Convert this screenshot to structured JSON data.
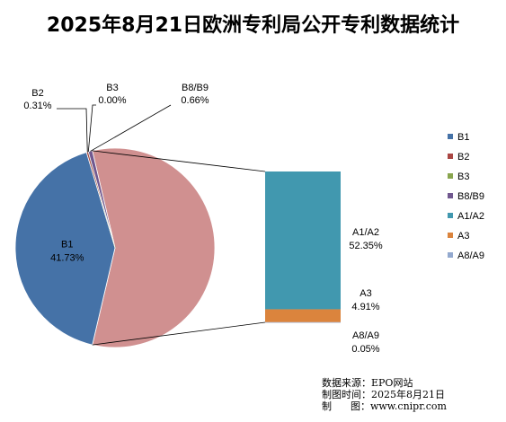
{
  "title": "2025年8月21日欧洲专利局公开专利数据统计",
  "colors": {
    "B1": "#4572A7",
    "B2": "#AA4643",
    "B3": "#89A54E",
    "B8/B9": "#71588F",
    "A1/A2": "#4198AF",
    "A3": "#DB843D",
    "A8/A9": "#93A9CF",
    "A_combined": "#D09090"
  },
  "chart_data": {
    "type": "pie",
    "subtype": "bar-of-pie",
    "title": "2025年8月21日欧洲专利局公开专利数据统计",
    "legend_position": "right",
    "pie": [
      {
        "name": "B1",
        "value": 41.73,
        "label": "41.73%"
      },
      {
        "name": "B2",
        "value": 0.31,
        "label": "0.31%"
      },
      {
        "name": "B3",
        "value": 0.0,
        "label": "0.00%"
      },
      {
        "name": "B8/B9",
        "value": 0.66,
        "label": "0.66%"
      }
    ],
    "bar": [
      {
        "name": "A1/A2",
        "value": 52.35,
        "label": "52.35%"
      },
      {
        "name": "A3",
        "value": 4.91,
        "label": "4.91%"
      },
      {
        "name": "A8/A9",
        "value": 0.05,
        "label": "0.05%"
      }
    ],
    "legend": [
      "B1",
      "B2",
      "B3",
      "B8/B9",
      "A1/A2",
      "A3",
      "A8/A9"
    ]
  },
  "source": {
    "line1": "数据来源：EPO网站",
    "line2": "制图时间：2025年8月21日",
    "line3": "制      图：www.cnipr.com"
  }
}
